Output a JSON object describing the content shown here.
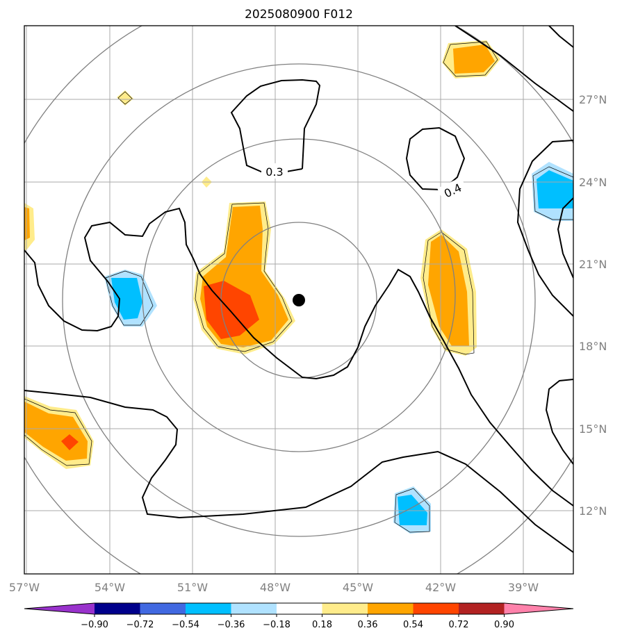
{
  "title": "2025080900 F012",
  "map": {
    "lon_ticks": [
      "57°W",
      "54°W",
      "51°W",
      "48°W",
      "45°W",
      "42°W",
      "39°W"
    ],
    "lat_ticks": [
      "27°N",
      "24°N",
      "21°N",
      "18°N",
      "15°N",
      "12°N"
    ],
    "contour_labels": [
      "0.3",
      "0.4"
    ],
    "center_marker": "storm-center-dot"
  },
  "colorbar": {
    "ticks": [
      "−0.90",
      "−0.72",
      "−0.54",
      "−0.36",
      "−0.18",
      "0.18",
      "0.36",
      "0.54",
      "0.72",
      "0.90"
    ],
    "colors": [
      "#9932cc",
      "#00008b",
      "#4169e1",
      "#00bfff",
      "#b0e2ff",
      "#ffffff",
      "#ffec8b",
      "#ffa500",
      "#ff4500",
      "#b22222",
      "#ff82ab"
    ]
  },
  "fill_colors": {
    "light_yellow": "#ffec8b",
    "orange": "#ffa500",
    "red_orange": "#ff4500",
    "light_blue": "#b0e2ff",
    "deep_sky_blue": "#00bfff"
  }
}
